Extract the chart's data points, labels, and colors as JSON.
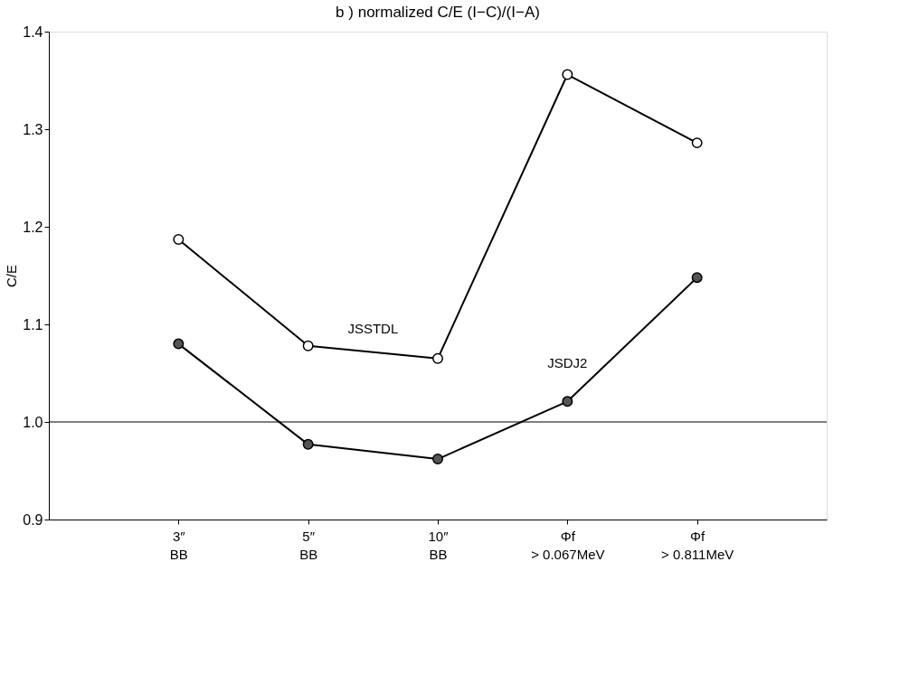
{
  "chart_data": {
    "type": "line",
    "title": "b ) normalized  C/E    (I−C)/(I−A)",
    "ylabel": "C/E",
    "categories": [
      "3″\nBB",
      "5″\nBB",
      "10″\nBB",
      "Φf\n> 0.067MeV",
      "Φf\n> 0.811MeV"
    ],
    "series": [
      {
        "name": "JSSTDL",
        "color": "#ffffff",
        "values": [
          1.187,
          1.078,
          1.065,
          1.356,
          1.286
        ]
      },
      {
        "name": "JSDJ2",
        "color": "#555555",
        "values": [
          1.08,
          0.977,
          0.962,
          1.021,
          1.148
        ]
      }
    ],
    "ylim": [
      0.9,
      1.4
    ],
    "yticks": [
      0.9,
      {
        "value": 1.0,
        "label": "1.0"
      },
      1.1,
      1.2,
      1.3,
      1.4
    ],
    "ref_lines": [
      {
        "axis": "y",
        "value": 1.0,
        "label": null,
        "color": "#000000"
      }
    ],
    "marker": "circle",
    "line_style": "solid",
    "grid": false
  }
}
